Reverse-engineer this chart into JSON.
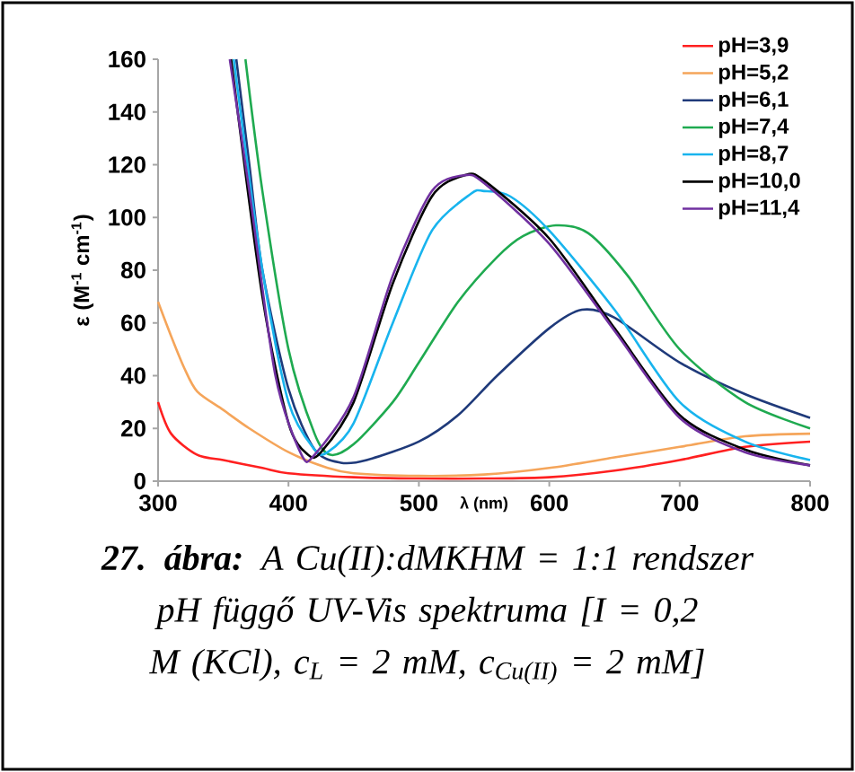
{
  "chart_data": {
    "type": "line",
    "xlabel": "λ (nm)",
    "ylabel": "ε (M$^{-1}$ cm$^{-1}$)",
    "annotations": [
      "**27. ábra:** A Cu(II):dMKHM = 1:1 rendszer pH függő UV-Vis spektruma [I = 0,2 M (KCl), c$_{L}$ = 2 mM, c$_{Cu(II)}$ = 2 mM]"
    ],
    "xlim": [
      300,
      800
    ],
    "ylim": [
      0,
      160
    ],
    "xticks": [
      300,
      400,
      500,
      600,
      700,
      800
    ],
    "yticks": [
      0,
      20,
      40,
      60,
      80,
      100,
      120,
      140,
      160
    ],
    "grid": false,
    "legend": "top right",
    "marker": "none",
    "series": [
      {
        "name": "pH=3,9",
        "color": "#ff2020",
        "x": [
          300,
          310,
          330,
          350,
          380,
          400,
          450,
          500,
          550,
          600,
          650,
          700,
          750,
          800
        ],
        "values": [
          30,
          18,
          10,
          8,
          5,
          3,
          1.5,
          1,
          1,
          1.5,
          4,
          8,
          13,
          15
        ]
      },
      {
        "name": "pH=5,2",
        "color": "#f5a55a",
        "x": [
          300,
          310,
          320,
          330,
          350,
          370,
          400,
          430,
          450,
          500,
          550,
          600,
          650,
          700,
          750,
          800
        ],
        "values": [
          68,
          55,
          43,
          34,
          27,
          20,
          11,
          5,
          3,
          2,
          2.5,
          5,
          9,
          13,
          17,
          18
        ]
      },
      {
        "name": "pH=6,1",
        "color": "#1f3a7a",
        "x": [
          360,
          370,
          380,
          400,
          420,
          440,
          460,
          500,
          530,
          560,
          600,
          625,
          650,
          700,
          750,
          800
        ],
        "values": [
          160,
          120,
          80,
          35,
          12,
          7,
          8,
          15,
          25,
          40,
          58,
          65,
          62,
          45,
          33,
          24
        ]
      },
      {
        "name": "pH=7,4",
        "color": "#1faa50",
        "x": [
          367,
          380,
          400,
          420,
          432,
          450,
          480,
          500,
          530,
          560,
          580,
          605,
          630,
          660,
          700,
          750,
          800
        ],
        "values": [
          160,
          110,
          50,
          18,
          10,
          14,
          30,
          45,
          68,
          85,
          93,
          97,
          94,
          78,
          50,
          30,
          20
        ]
      },
      {
        "name": "pH=8,7",
        "color": "#18b4ee",
        "x": [
          358,
          380,
          400,
          420,
          430,
          450,
          480,
          510,
          540,
          550,
          570,
          600,
          650,
          700,
          750,
          800
        ],
        "values": [
          160,
          80,
          30,
          12,
          11,
          22,
          60,
          95,
          109,
          110,
          108,
          95,
          65,
          30,
          15,
          8
        ]
      },
      {
        "name": "pH=10,0",
        "color": "#000000",
        "x": [
          356,
          380,
          400,
          415,
          425,
          450,
          480,
          510,
          535,
          550,
          600,
          650,
          700,
          750,
          800
        ],
        "values": [
          160,
          70,
          22,
          10,
          11,
          30,
          75,
          108,
          116,
          114,
          92,
          58,
          25,
          12,
          6
        ]
      },
      {
        "name": "pH=11,4",
        "color": "#7030a0",
        "x": [
          355,
          370,
          390,
          410,
          420,
          450,
          480,
          510,
          535,
          550,
          600,
          650,
          700,
          750,
          800
        ],
        "values": [
          160,
          110,
          40,
          10,
          10,
          32,
          78,
          110,
          116,
          113,
          90,
          57,
          24,
          11,
          6
        ]
      }
    ]
  }
}
